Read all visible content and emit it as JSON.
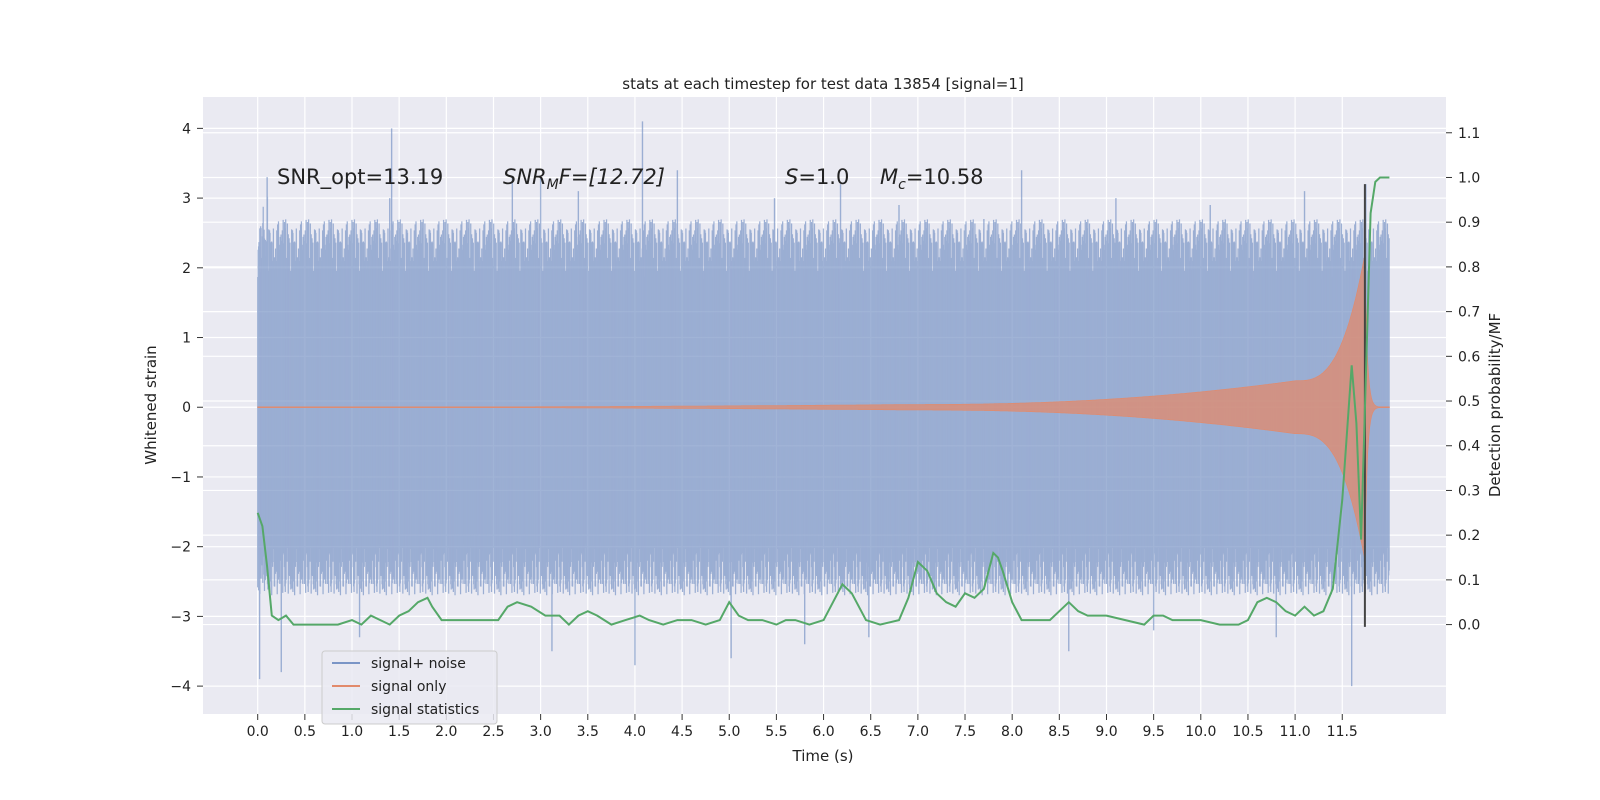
{
  "chart_data": {
    "type": "line",
    "title": "stats at each timestep for test data 13854 [signal=1]",
    "xlabel": "Time (s)",
    "ylabel": "Whitened strain",
    "ylabel_right": "Detection probability/MF",
    "xlim": [
      -0.58,
      12.6
    ],
    "ylim": [
      -4.4,
      4.45
    ],
    "ylim_right": [
      -0.2,
      1.18
    ],
    "x_ticks": [
      "0.0",
      "0.5",
      "1.0",
      "1.5",
      "2.0",
      "2.5",
      "3.0",
      "3.5",
      "4.0",
      "4.5",
      "5.0",
      "5.5",
      "6.0",
      "6.5",
      "7.0",
      "7.5",
      "8.0",
      "8.5",
      "9.0",
      "9.5",
      "10.0",
      "10.5",
      "11.0",
      "11.5"
    ],
    "y_ticks": [
      "4",
      "3",
      "2",
      "1",
      "0",
      "−1",
      "−2",
      "−3",
      "−4"
    ],
    "y_ticks_right": [
      "1.1",
      "1.0",
      "0.9",
      "0.8",
      "0.7",
      "0.6",
      "0.5",
      "0.4",
      "0.3",
      "0.2",
      "0.1",
      "0.0"
    ],
    "grid": true,
    "legend_position": "bottom-left",
    "annotations": {
      "snr_opt": "SNR_opt=13.19",
      "snr_mf_label": "SNR",
      "snr_mf_sub": "M",
      "snr_mf_value": "F=[12.72]",
      "s_label": "S",
      "s_value": "=1.0",
      "mc_label": "M",
      "mc_sub": "c",
      "mc_value": "=10.58"
    },
    "series": [
      {
        "name": "signal+ noise",
        "axis": "left",
        "color": "#7a95c6",
        "style": "dense-noise",
        "t_range": [
          0.0,
          12.0
        ],
        "envelope_core": 1.3,
        "peaks": [
          {
            "x": 0.05,
            "y": 2.45
          },
          {
            "x": 0.1,
            "y": 3.3
          },
          {
            "x": 0.02,
            "y": -3.9
          },
          {
            "x": 0.25,
            "y": -3.8
          },
          {
            "x": 1.42,
            "y": 4.0
          },
          {
            "x": 1.08,
            "y": -3.3
          },
          {
            "x": 1.4,
            "y": 3.0
          },
          {
            "x": 2.7,
            "y": 3.3
          },
          {
            "x": 3.0,
            "y": 3.3
          },
          {
            "x": 3.12,
            "y": -3.5
          },
          {
            "x": 3.4,
            "y": 3.1
          },
          {
            "x": 4.08,
            "y": 4.1
          },
          {
            "x": 4.0,
            "y": -3.7
          },
          {
            "x": 4.45,
            "y": 3.4
          },
          {
            "x": 5.02,
            "y": -3.6
          },
          {
            "x": 5.8,
            "y": -3.4
          },
          {
            "x": 5.48,
            "y": 3.0
          },
          {
            "x": 6.48,
            "y": -3.3
          },
          {
            "x": 6.18,
            "y": 3.2
          },
          {
            "x": 6.8,
            "y": 2.9
          },
          {
            "x": 7.7,
            "y": 2.7
          },
          {
            "x": 8.1,
            "y": 3.4
          },
          {
            "x": 8.6,
            "y": -3.5
          },
          {
            "x": 9.1,
            "y": 3.0
          },
          {
            "x": 9.5,
            "y": -3.2
          },
          {
            "x": 10.1,
            "y": 2.9
          },
          {
            "x": 10.8,
            "y": -3.3
          },
          {
            "x": 11.1,
            "y": 3.1
          },
          {
            "x": 11.6,
            "y": -4.0
          },
          {
            "x": 11.75,
            "y": 3.2
          }
        ]
      },
      {
        "name": "signal only",
        "axis": "left",
        "color": "#e28a6b",
        "style": "chirp",
        "t_range": [
          0.0,
          12.0
        ],
        "t_merge": 11.74,
        "amp_at_7": 0.04,
        "amp_at_11": 0.38,
        "amp_peak": 2.2
      },
      {
        "name": "signal statistics",
        "axis": "right",
        "color": "#55a868",
        "style": "line",
        "x": [
          0.0,
          0.05,
          0.1,
          0.15,
          0.22,
          0.3,
          0.38,
          0.45,
          0.55,
          0.7,
          0.85,
          1.0,
          1.1,
          1.2,
          1.3,
          1.4,
          1.5,
          1.6,
          1.7,
          1.8,
          1.85,
          1.95,
          2.05,
          2.2,
          2.4,
          2.55,
          2.65,
          2.75,
          2.9,
          3.05,
          3.2,
          3.3,
          3.4,
          3.5,
          3.6,
          3.75,
          3.9,
          4.05,
          4.15,
          4.3,
          4.45,
          4.6,
          4.75,
          4.9,
          5.0,
          5.1,
          5.2,
          5.35,
          5.5,
          5.6,
          5.7,
          5.85,
          6.0,
          6.1,
          6.2,
          6.3,
          6.45,
          6.6,
          6.8,
          6.9,
          7.0,
          7.1,
          7.2,
          7.3,
          7.4,
          7.5,
          7.6,
          7.7,
          7.8,
          7.85,
          7.9,
          8.0,
          8.1,
          8.2,
          8.4,
          8.5,
          8.6,
          8.7,
          8.8,
          8.9,
          9.0,
          9.2,
          9.4,
          9.5,
          9.6,
          9.7,
          9.8,
          10.0,
          10.2,
          10.3,
          10.4,
          10.5,
          10.6,
          10.7,
          10.8,
          10.9,
          11.0,
          11.1,
          11.2,
          11.3,
          11.4,
          11.5,
          11.6,
          11.65,
          11.7,
          11.75,
          11.8,
          11.85,
          11.9,
          12.0
        ],
        "values": [
          0.25,
          0.22,
          0.13,
          0.02,
          0.01,
          0.02,
          0.0,
          0.0,
          0.0,
          0.0,
          0.0,
          0.01,
          0.0,
          0.02,
          0.01,
          0.0,
          0.02,
          0.03,
          0.05,
          0.06,
          0.04,
          0.01,
          0.01,
          0.01,
          0.01,
          0.01,
          0.04,
          0.05,
          0.04,
          0.02,
          0.02,
          0.0,
          0.02,
          0.03,
          0.02,
          0.0,
          0.01,
          0.02,
          0.01,
          0.0,
          0.01,
          0.01,
          0.0,
          0.01,
          0.05,
          0.02,
          0.01,
          0.01,
          0.0,
          0.01,
          0.01,
          0.0,
          0.01,
          0.05,
          0.09,
          0.07,
          0.01,
          0.0,
          0.01,
          0.06,
          0.14,
          0.12,
          0.07,
          0.05,
          0.04,
          0.07,
          0.06,
          0.08,
          0.16,
          0.15,
          0.12,
          0.05,
          0.01,
          0.01,
          0.01,
          0.03,
          0.05,
          0.03,
          0.02,
          0.02,
          0.02,
          0.01,
          0.0,
          0.02,
          0.02,
          0.01,
          0.01,
          0.01,
          0.0,
          0.0,
          0.0,
          0.01,
          0.05,
          0.06,
          0.05,
          0.03,
          0.02,
          0.04,
          0.02,
          0.03,
          0.08,
          0.28,
          0.58,
          0.45,
          0.19,
          0.55,
          0.92,
          0.99,
          1.0,
          1.0
        ]
      },
      {
        "name": "",
        "axis": "left",
        "color": "#444444",
        "style": "vline",
        "x": 11.74,
        "y_range": [
          -3.15,
          3.2
        ]
      }
    ]
  }
}
